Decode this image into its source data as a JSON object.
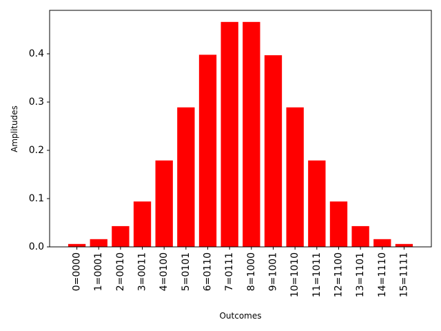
{
  "chart_data": {
    "type": "bar",
    "title": "",
    "xlabel": "Outcomes",
    "ylabel": "Amplitudes",
    "categories": [
      "0=0000",
      "1=0001",
      "2=0010",
      "3=0011",
      "4=0100",
      "5=0101",
      "6=0110",
      "7=0111",
      "8=1000",
      "9=1001",
      "10=1010",
      "11=1011",
      "12=1100",
      "13=1101",
      "14=1110",
      "15=1111"
    ],
    "values": [
      0.006,
      0.016,
      0.043,
      0.094,
      0.179,
      0.289,
      0.398,
      0.466,
      0.466,
      0.397,
      0.289,
      0.179,
      0.094,
      0.043,
      0.016,
      0.006
    ],
    "ylim": [
      0,
      0.49
    ],
    "yticks": [
      "0.0",
      "0.1",
      "0.2",
      "0.3",
      "0.4"
    ],
    "bar_color": "#ff0000",
    "grid": false,
    "legend": "none"
  }
}
